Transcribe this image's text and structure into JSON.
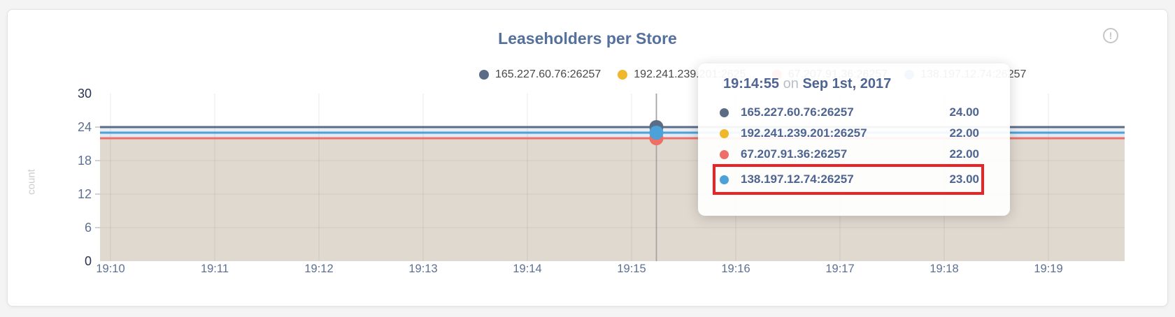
{
  "card": {
    "title": "Leaseholders per Store",
    "info_glyph": "!"
  },
  "legend": {
    "items": [
      {
        "label": "165.227.60.76:26257",
        "color": "#5b6c86"
      },
      {
        "label": "192.241.239.201:2625...",
        "color": "#efb72b"
      },
      {
        "label": "67.207.91.36:26257",
        "color": "#ec6f68"
      },
      {
        "label": "138.197.12.74:26257",
        "color": "#4ba1d8"
      }
    ]
  },
  "chart_data": {
    "type": "area",
    "title": "Leaseholders per Store",
    "xlabel": "",
    "ylabel": "count",
    "ylim": [
      0,
      30
    ],
    "yticks": [
      30,
      24,
      18,
      12,
      6,
      0
    ],
    "x_ticks": [
      "19:10",
      "19:11",
      "19:12",
      "19:13",
      "19:14",
      "19:15",
      "19:16",
      "19:17",
      "19:18",
      "19:19"
    ],
    "series": [
      {
        "name": "165.227.60.76:26257",
        "color": "#5b6c86",
        "value": 24
      },
      {
        "name": "192.241.239.201:26257",
        "color": "#efb72b",
        "value": 22
      },
      {
        "name": "67.207.91.36:26257",
        "color": "#ec6f68",
        "value": 22
      },
      {
        "name": "138.197.12.74:26257",
        "color": "#4ba1d8",
        "value": 23
      }
    ],
    "hover": {
      "time": "19:14:55",
      "x_fraction": 0.543
    },
    "grid": true,
    "legend_position": "top"
  },
  "tooltip": {
    "time": "19:14:55",
    "conj": "on",
    "date": "Sep 1st, 2017",
    "highlight_color": "#ec2227",
    "rows": [
      {
        "label": "165.227.60.76:26257",
        "value": "24.00",
        "color": "#5b6c86"
      },
      {
        "label": "192.241.239.201:26257",
        "value": "22.00",
        "color": "#efb72b"
      },
      {
        "label": "67.207.91.36:26257",
        "value": "22.00",
        "color": "#ec6f68"
      },
      {
        "label": "138.197.12.74:26257",
        "value": "23.00",
        "color": "#4ba1d8"
      }
    ]
  }
}
